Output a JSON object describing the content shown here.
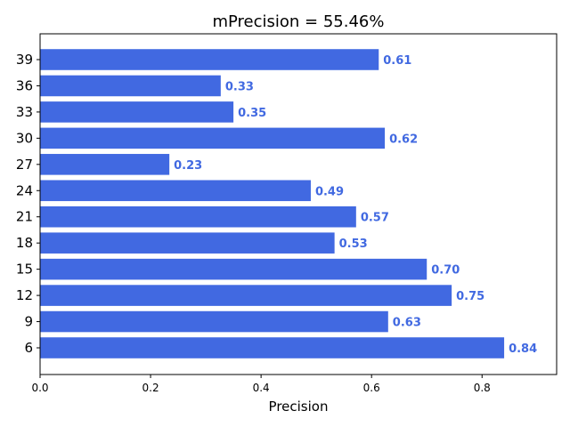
{
  "chart_data": {
    "type": "bar",
    "orientation": "horizontal",
    "title": "mPrecision = 55.46%",
    "xlabel": "Precision",
    "ylabel": "",
    "xlim": [
      0,
      0.935
    ],
    "xticks": [
      "0.0",
      "0.2",
      "0.4",
      "0.6",
      "0.8"
    ],
    "xtick_values": [
      0,
      0.2,
      0.4,
      0.6,
      0.8
    ],
    "categories": [
      "6",
      "9",
      "12",
      "15",
      "18",
      "21",
      "24",
      "27",
      "30",
      "33",
      "36",
      "39"
    ],
    "values": [
      0.84,
      0.63,
      0.745,
      0.7,
      0.533,
      0.572,
      0.49,
      0.234,
      0.624,
      0.35,
      0.327,
      0.613
    ],
    "data_labels": [
      "0.84",
      "0.63",
      "0.75",
      "0.70",
      "0.53",
      "0.57",
      "0.49",
      "0.23",
      "0.62",
      "0.35",
      "0.33",
      "0.61"
    ],
    "bar_color": "#4169e1",
    "label_color": "#4169e1",
    "grid": false,
    "legend": "none"
  }
}
